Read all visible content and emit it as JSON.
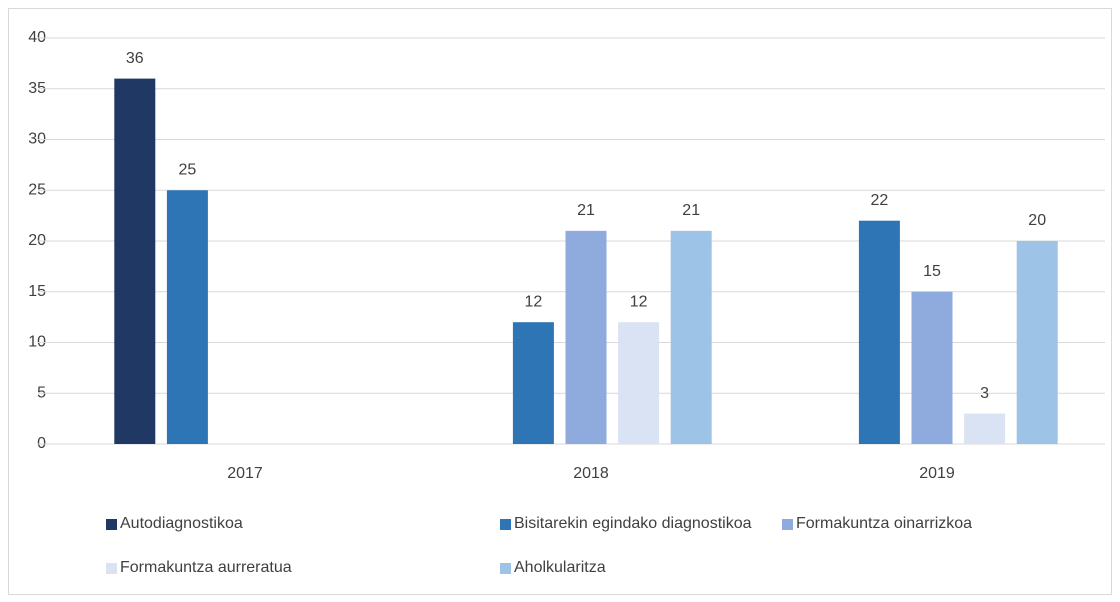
{
  "chart_data": {
    "type": "bar",
    "categories": [
      "2017",
      "2018",
      "2019"
    ],
    "series": [
      {
        "name": "Autodiagnostikoa",
        "color": "#1f3864",
        "values": [
          36,
          null,
          null
        ]
      },
      {
        "name": "Bisitarekin egindako diagnostikoa",
        "color": "#2e75b6",
        "values": [
          25,
          12,
          22
        ]
      },
      {
        "name": "Formakuntza oinarrizkoa",
        "color": "#8faadc",
        "values": [
          null,
          21,
          15
        ]
      },
      {
        "name": "Formakuntza aurreratua",
        "color": "#dae3f3",
        "values": [
          null,
          12,
          3
        ]
      },
      {
        "name": "Aholkularitza",
        "color": "#9dc3e6",
        "values": [
          null,
          21,
          20
        ]
      }
    ],
    "ylim": [
      0,
      40
    ],
    "yticks": [
      0,
      5,
      10,
      15,
      20,
      25,
      30,
      35,
      40
    ],
    "grid": true,
    "legend": "bottom"
  }
}
